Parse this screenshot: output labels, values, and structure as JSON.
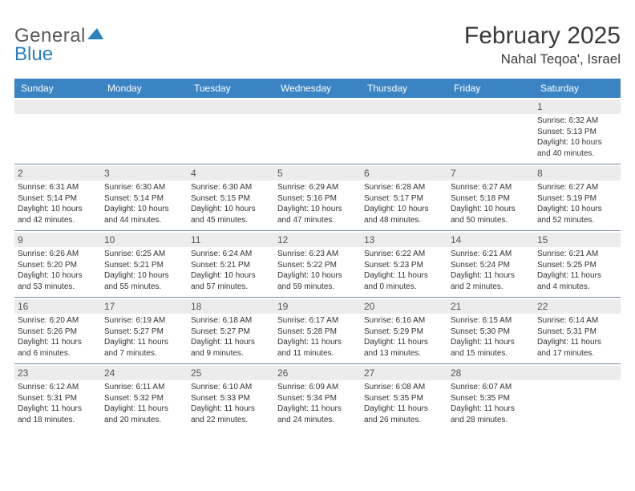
{
  "logo": {
    "part1": "General",
    "part2": "Blue",
    "triangle_color": "#2a7fbf"
  },
  "title": {
    "month": "February 2025",
    "location": "Nahal Teqoa', Israel"
  },
  "colors": {
    "header_bg": "#3b84c4",
    "header_text": "#ffffff",
    "daynum_bg": "#ececec",
    "week_border": "#7b8a9a"
  },
  "day_names": [
    "Sunday",
    "Monday",
    "Tuesday",
    "Wednesday",
    "Thursday",
    "Friday",
    "Saturday"
  ],
  "weeks": [
    [
      null,
      null,
      null,
      null,
      null,
      null,
      {
        "n": "1",
        "sr": "Sunrise: 6:32 AM",
        "ss": "Sunset: 5:13 PM",
        "dl1": "Daylight: 10 hours",
        "dl2": "and 40 minutes."
      }
    ],
    [
      {
        "n": "2",
        "sr": "Sunrise: 6:31 AM",
        "ss": "Sunset: 5:14 PM",
        "dl1": "Daylight: 10 hours",
        "dl2": "and 42 minutes."
      },
      {
        "n": "3",
        "sr": "Sunrise: 6:30 AM",
        "ss": "Sunset: 5:14 PM",
        "dl1": "Daylight: 10 hours",
        "dl2": "and 44 minutes."
      },
      {
        "n": "4",
        "sr": "Sunrise: 6:30 AM",
        "ss": "Sunset: 5:15 PM",
        "dl1": "Daylight: 10 hours",
        "dl2": "and 45 minutes."
      },
      {
        "n": "5",
        "sr": "Sunrise: 6:29 AM",
        "ss": "Sunset: 5:16 PM",
        "dl1": "Daylight: 10 hours",
        "dl2": "and 47 minutes."
      },
      {
        "n": "6",
        "sr": "Sunrise: 6:28 AM",
        "ss": "Sunset: 5:17 PM",
        "dl1": "Daylight: 10 hours",
        "dl2": "and 48 minutes."
      },
      {
        "n": "7",
        "sr": "Sunrise: 6:27 AM",
        "ss": "Sunset: 5:18 PM",
        "dl1": "Daylight: 10 hours",
        "dl2": "and 50 minutes."
      },
      {
        "n": "8",
        "sr": "Sunrise: 6:27 AM",
        "ss": "Sunset: 5:19 PM",
        "dl1": "Daylight: 10 hours",
        "dl2": "and 52 minutes."
      }
    ],
    [
      {
        "n": "9",
        "sr": "Sunrise: 6:26 AM",
        "ss": "Sunset: 5:20 PM",
        "dl1": "Daylight: 10 hours",
        "dl2": "and 53 minutes."
      },
      {
        "n": "10",
        "sr": "Sunrise: 6:25 AM",
        "ss": "Sunset: 5:21 PM",
        "dl1": "Daylight: 10 hours",
        "dl2": "and 55 minutes."
      },
      {
        "n": "11",
        "sr": "Sunrise: 6:24 AM",
        "ss": "Sunset: 5:21 PM",
        "dl1": "Daylight: 10 hours",
        "dl2": "and 57 minutes."
      },
      {
        "n": "12",
        "sr": "Sunrise: 6:23 AM",
        "ss": "Sunset: 5:22 PM",
        "dl1": "Daylight: 10 hours",
        "dl2": "and 59 minutes."
      },
      {
        "n": "13",
        "sr": "Sunrise: 6:22 AM",
        "ss": "Sunset: 5:23 PM",
        "dl1": "Daylight: 11 hours",
        "dl2": "and 0 minutes."
      },
      {
        "n": "14",
        "sr": "Sunrise: 6:21 AM",
        "ss": "Sunset: 5:24 PM",
        "dl1": "Daylight: 11 hours",
        "dl2": "and 2 minutes."
      },
      {
        "n": "15",
        "sr": "Sunrise: 6:21 AM",
        "ss": "Sunset: 5:25 PM",
        "dl1": "Daylight: 11 hours",
        "dl2": "and 4 minutes."
      }
    ],
    [
      {
        "n": "16",
        "sr": "Sunrise: 6:20 AM",
        "ss": "Sunset: 5:26 PM",
        "dl1": "Daylight: 11 hours",
        "dl2": "and 6 minutes."
      },
      {
        "n": "17",
        "sr": "Sunrise: 6:19 AM",
        "ss": "Sunset: 5:27 PM",
        "dl1": "Daylight: 11 hours",
        "dl2": "and 7 minutes."
      },
      {
        "n": "18",
        "sr": "Sunrise: 6:18 AM",
        "ss": "Sunset: 5:27 PM",
        "dl1": "Daylight: 11 hours",
        "dl2": "and 9 minutes."
      },
      {
        "n": "19",
        "sr": "Sunrise: 6:17 AM",
        "ss": "Sunset: 5:28 PM",
        "dl1": "Daylight: 11 hours",
        "dl2": "and 11 minutes."
      },
      {
        "n": "20",
        "sr": "Sunrise: 6:16 AM",
        "ss": "Sunset: 5:29 PM",
        "dl1": "Daylight: 11 hours",
        "dl2": "and 13 minutes."
      },
      {
        "n": "21",
        "sr": "Sunrise: 6:15 AM",
        "ss": "Sunset: 5:30 PM",
        "dl1": "Daylight: 11 hours",
        "dl2": "and 15 minutes."
      },
      {
        "n": "22",
        "sr": "Sunrise: 6:14 AM",
        "ss": "Sunset: 5:31 PM",
        "dl1": "Daylight: 11 hours",
        "dl2": "and 17 minutes."
      }
    ],
    [
      {
        "n": "23",
        "sr": "Sunrise: 6:12 AM",
        "ss": "Sunset: 5:31 PM",
        "dl1": "Daylight: 11 hours",
        "dl2": "and 18 minutes."
      },
      {
        "n": "24",
        "sr": "Sunrise: 6:11 AM",
        "ss": "Sunset: 5:32 PM",
        "dl1": "Daylight: 11 hours",
        "dl2": "and 20 minutes."
      },
      {
        "n": "25",
        "sr": "Sunrise: 6:10 AM",
        "ss": "Sunset: 5:33 PM",
        "dl1": "Daylight: 11 hours",
        "dl2": "and 22 minutes."
      },
      {
        "n": "26",
        "sr": "Sunrise: 6:09 AM",
        "ss": "Sunset: 5:34 PM",
        "dl1": "Daylight: 11 hours",
        "dl2": "and 24 minutes."
      },
      {
        "n": "27",
        "sr": "Sunrise: 6:08 AM",
        "ss": "Sunset: 5:35 PM",
        "dl1": "Daylight: 11 hours",
        "dl2": "and 26 minutes."
      },
      {
        "n": "28",
        "sr": "Sunrise: 6:07 AM",
        "ss": "Sunset: 5:35 PM",
        "dl1": "Daylight: 11 hours",
        "dl2": "and 28 minutes."
      },
      null
    ]
  ]
}
